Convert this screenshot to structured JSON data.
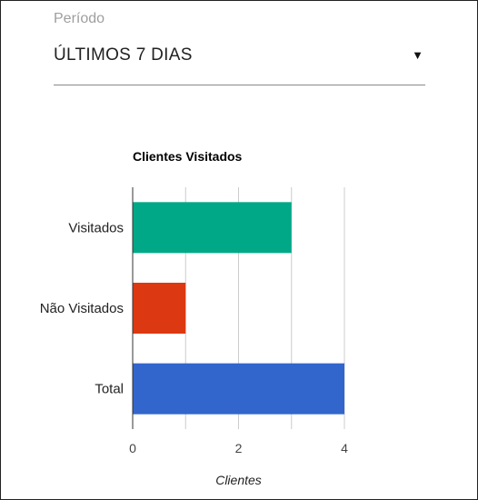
{
  "filter": {
    "label": "Período",
    "selected": "ÚLTIMOS 7 DIAS",
    "dropdown_icon": "triangle-down-icon"
  },
  "chart_data": {
    "type": "bar",
    "orientation": "horizontal",
    "title": "Clientes Visitados",
    "xlabel": "Clientes",
    "ylabel": "",
    "categories": [
      "Visitados",
      "Não Visitados",
      "Total"
    ],
    "values": [
      3,
      1,
      4
    ],
    "colors": [
      "#00a887",
      "#dc3912",
      "#3266cc"
    ],
    "xlim": [
      0,
      4
    ],
    "xticks": [
      0,
      2,
      4
    ],
    "gridlines": [
      0,
      1,
      2,
      3,
      4
    ],
    "grid": true,
    "legend": "none"
  }
}
